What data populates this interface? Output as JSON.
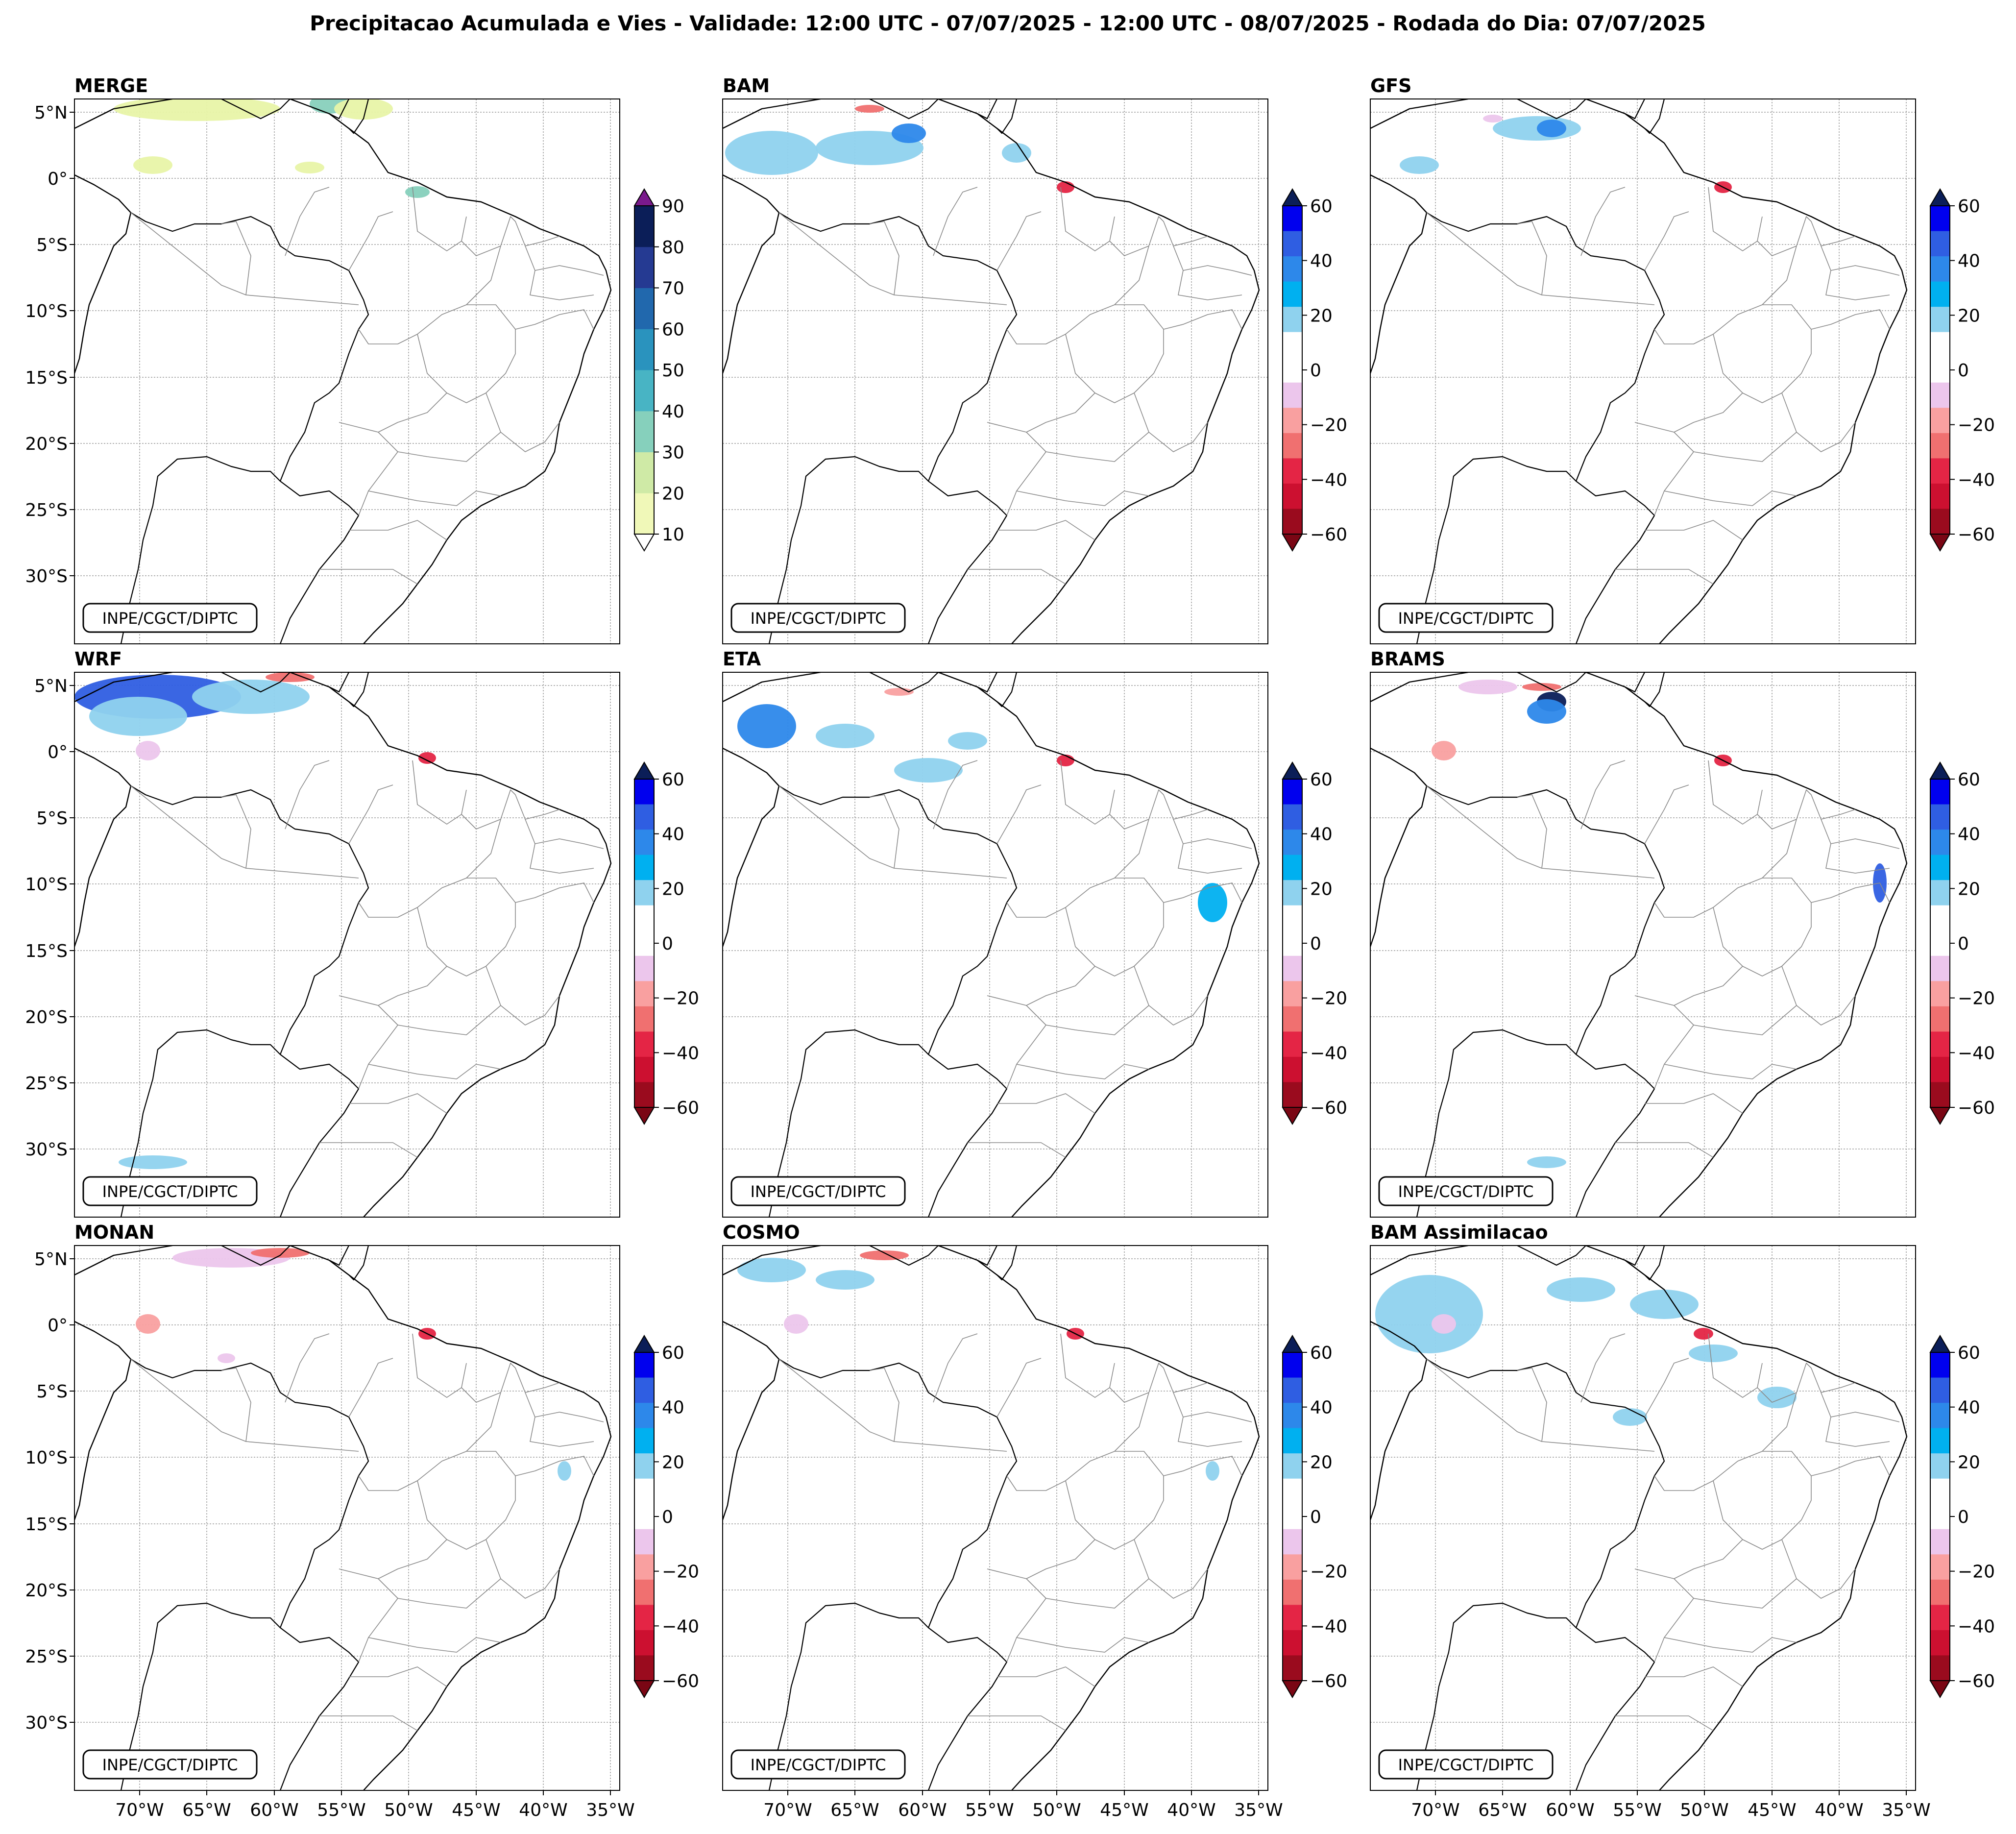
{
  "title": "Precipitacao Acumulada e Vies - Validade: 12:00 UTC - 07/07/2025 - 12:00 UTC - 08/07/2025 - Rodada do Dia: 07/07/2025",
  "watermark": "INPE/CGCT/DIPTC",
  "lat_labels": [
    "5°N",
    "0°",
    "5°S",
    "10°S",
    "15°S",
    "20°S",
    "25°S",
    "30°S"
  ],
  "lon_labels": [
    "70°W",
    "65°W",
    "60°W",
    "55°W",
    "50°W",
    "45°W",
    "40°W",
    "35°W"
  ],
  "panels": [
    {
      "name": "MERGE",
      "scale": "precip"
    },
    {
      "name": "BAM",
      "scale": "bias"
    },
    {
      "name": "GFS",
      "scale": "bias"
    },
    {
      "name": "WRF",
      "scale": "bias"
    },
    {
      "name": "ETA",
      "scale": "bias"
    },
    {
      "name": "BRAMS",
      "scale": "bias"
    },
    {
      "name": "MONAN",
      "scale": "bias"
    },
    {
      "name": "COSMO",
      "scale": "bias"
    },
    {
      "name": "BAM Assimilacao",
      "scale": "bias"
    }
  ],
  "colorbars": {
    "precip": {
      "ticks": [
        "10",
        "20",
        "30",
        "40",
        "50",
        "60",
        "70",
        "80",
        "90"
      ],
      "colors": [
        "#f0f8b8",
        "#cfeaa6",
        "#86d0bc",
        "#48b4c4",
        "#2a93be",
        "#2168ad",
        "#253a92",
        "#0b1e58"
      ],
      "under": "#ffffff",
      "over": "#7a1a8c"
    },
    "bias": {
      "ticks": [
        "60",
        "40",
        "20",
        "0",
        "−20",
        "−40",
        "−60"
      ],
      "colors": [
        "#0000ee",
        "#2f5ee2",
        "#2d88ea",
        "#00b0f0",
        "#8fd2ee",
        "#ffffff",
        "#ffffff",
        "#ecc6ec",
        "#f9a0a0",
        "#f07070",
        "#e42545",
        "#cc1030",
        "#9a0b1e"
      ],
      "over": "#0b1e58",
      "under": "#7a0614"
    }
  }
}
